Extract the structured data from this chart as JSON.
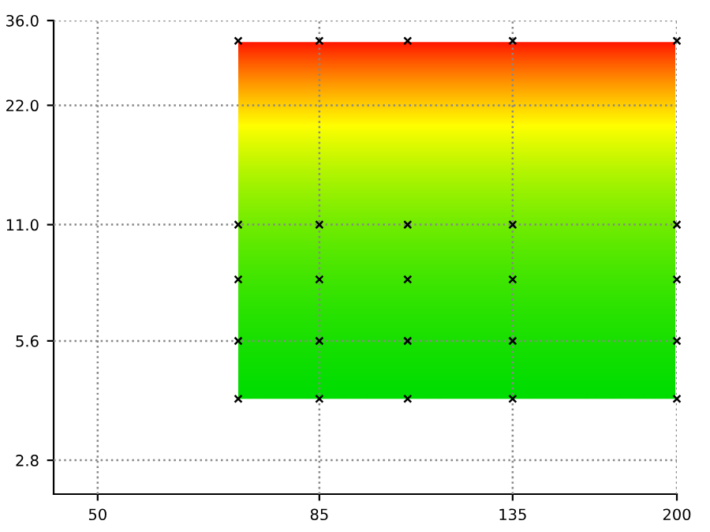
{
  "chart_data": {
    "type": "scatter",
    "log": "xy",
    "marker": "cross",
    "grid": true,
    "legend": false,
    "series": [
      {
        "color": "#000000",
        "x": [
          70,
          85,
          105,
          135,
          200,
          70,
          85,
          105,
          135,
          200,
          70,
          85,
          105,
          135,
          200,
          70,
          85,
          105,
          135,
          200,
          70,
          85,
          105,
          135,
          200
        ],
        "values": [
          4,
          4,
          4,
          4,
          4,
          5.6,
          5.6,
          5.6,
          5.6,
          5.6,
          8,
          8,
          8,
          8,
          8,
          11,
          11,
          11,
          11,
          11,
          32,
          32,
          32,
          32,
          32
        ]
      }
    ],
    "xlim": [
      45,
      200
    ],
    "xticks": [
      50,
      85,
      135,
      200
    ],
    "ylim": [
      2.3,
      36
    ],
    "yticks": [
      {
        "value": 2.8,
        "label": "2.8"
      },
      {
        "value": 5.6,
        "label": "5.6"
      },
      {
        "value": 11,
        "label": "11.0"
      },
      {
        "value": 22,
        "label": "22.0"
      },
      {
        "value": 36,
        "label": "36.0"
      }
    ]
  }
}
